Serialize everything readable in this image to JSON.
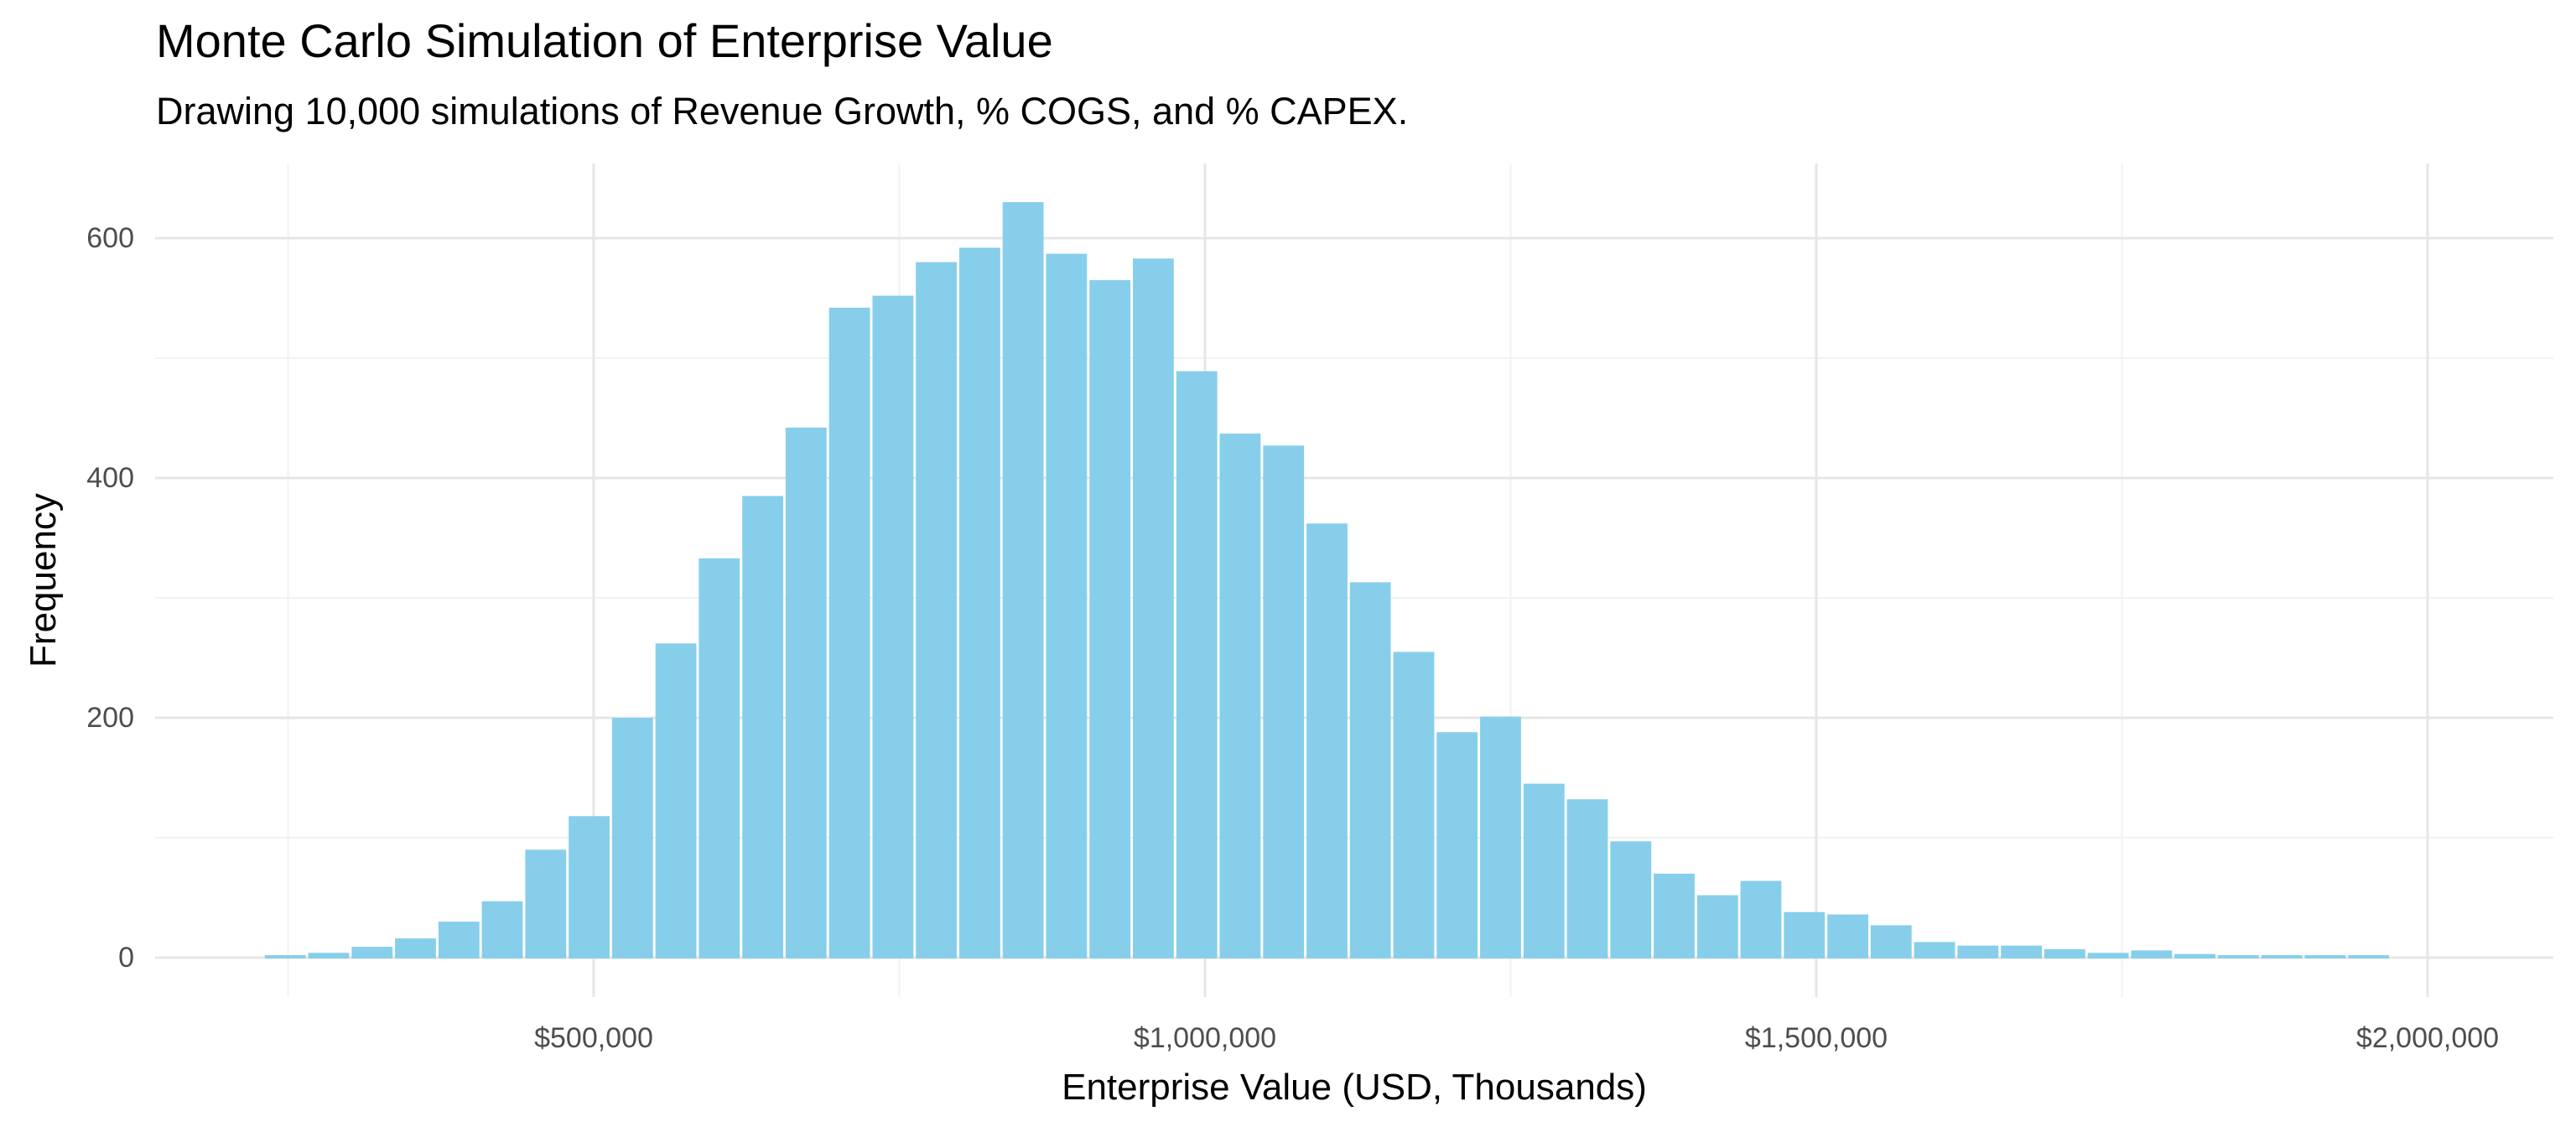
{
  "title": "Monte Carlo Simulation of Enterprise Value",
  "subtitle": "Drawing 10,000 simulations of Revenue Growth, % COGS, and % CAPEX.",
  "x_axis": {
    "label": "Enterprise Value (USD, Thousands)",
    "major_ticks": [
      {
        "value": 500000,
        "label": "$500,000"
      },
      {
        "value": 1000000,
        "label": "$1,000,000"
      },
      {
        "value": 1500000,
        "label": "$1,500,000"
      },
      {
        "value": 2000000,
        "label": "$2,000,000"
      }
    ],
    "minor_tick_values": [
      250000,
      750000,
      1250000,
      1750000
    ]
  },
  "y_axis": {
    "label": "Frequency",
    "major_ticks": [
      {
        "value": 0,
        "label": "0"
      },
      {
        "value": 200,
        "label": "200"
      },
      {
        "value": 400,
        "label": "400"
      },
      {
        "value": 600,
        "label": "600"
      }
    ],
    "minor_tick_values": [
      100,
      300,
      500
    ]
  },
  "colors": {
    "bar_fill": "#87CEEB",
    "bar_gap": "#FFFFFF",
    "grid_major": "#E6E6E6",
    "grid_minor": "#F2F2F2",
    "tick_text": "#4D4D4D",
    "title_text": "#000000"
  },
  "chart_data": {
    "type": "bar",
    "subtype": "histogram",
    "title": "Monte Carlo Simulation of Enterprise Value",
    "subtitle": "Drawing 10,000 simulations of Revenue Growth, % COGS, and % CAPEX.",
    "xlabel": "Enterprise Value (USD, Thousands)",
    "ylabel": "Frequency",
    "n_simulations": 10000,
    "bin_start": 230000,
    "bin_width": 35500,
    "counts": [
      2,
      4,
      9,
      16,
      30,
      47,
      90,
      118,
      200,
      262,
      333,
      385,
      442,
      542,
      552,
      580,
      592,
      630,
      587,
      565,
      583,
      489,
      437,
      427,
      362,
      313,
      255,
      188,
      201,
      145,
      132,
      97,
      70,
      52,
      64,
      38,
      36,
      27,
      13,
      10,
      10,
      7,
      4,
      6,
      3,
      2,
      2,
      2,
      2
    ],
    "xlim": [
      140000,
      2100000
    ],
    "ylim": [
      0,
      660
    ],
    "grid": true,
    "legend": false
  }
}
